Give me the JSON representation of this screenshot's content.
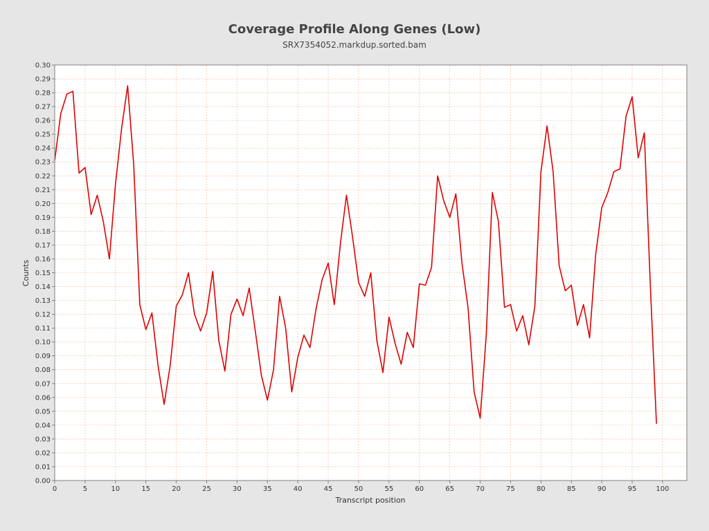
{
  "chart_data": {
    "type": "line",
    "title": "Coverage Profile Along Genes (Low)",
    "subtitle": "SRX7354052.markdup.sorted.bam",
    "xlabel": "Transcript position",
    "ylabel": "Counts",
    "xlim": [
      0,
      104
    ],
    "ylim": [
      0,
      0.3
    ],
    "x_ticks": [
      "0",
      "5",
      "10",
      "15",
      "20",
      "25",
      "30",
      "35",
      "40",
      "45",
      "50",
      "55",
      "60",
      "65",
      "70",
      "75",
      "80",
      "85",
      "90",
      "95",
      "100"
    ],
    "y_ticks": [
      "0.00",
      "0.01",
      "0.02",
      "0.03",
      "0.04",
      "0.05",
      "0.06",
      "0.07",
      "0.08",
      "0.09",
      "0.10",
      "0.11",
      "0.12",
      "0.13",
      "0.14",
      "0.15",
      "0.16",
      "0.17",
      "0.18",
      "0.19",
      "0.20",
      "0.21",
      "0.22",
      "0.23",
      "0.24",
      "0.25",
      "0.26",
      "0.27",
      "0.28",
      "0.29",
      "0.30"
    ],
    "grid": true,
    "colors": {
      "line": "#dd0000",
      "grid": "#f0b48c",
      "plot_bg": "#ffffff",
      "page_bg": "#e6e6e6"
    },
    "series": [
      {
        "x": [
          0,
          1,
          2,
          3,
          4,
          5,
          6,
          7,
          8,
          9,
          10,
          11,
          12,
          13,
          14,
          15,
          16,
          17,
          18,
          19,
          20,
          21,
          22,
          23,
          24,
          25,
          26,
          27,
          28,
          29,
          30,
          31,
          32,
          33,
          34,
          35,
          36,
          37,
          38,
          39,
          40,
          41,
          42,
          43,
          44,
          45,
          46,
          47,
          48,
          49,
          50,
          51,
          52,
          53,
          54,
          55,
          56,
          57,
          58,
          59,
          60,
          61,
          62,
          63,
          64,
          65,
          66,
          67,
          68,
          69,
          70,
          71,
          72,
          73,
          74,
          75,
          76,
          77,
          78,
          79,
          80,
          81,
          82,
          83,
          84,
          85,
          86,
          87,
          88,
          89,
          90,
          91,
          92,
          93,
          94,
          95,
          96,
          97,
          98,
          99
        ],
        "values": [
          0.231,
          0.265,
          0.279,
          0.281,
          0.222,
          0.226,
          0.192,
          0.206,
          0.187,
          0.16,
          0.214,
          0.254,
          0.285,
          0.228,
          0.127,
          0.109,
          0.121,
          0.083,
          0.055,
          0.083,
          0.126,
          0.134,
          0.15,
          0.12,
          0.108,
          0.121,
          0.151,
          0.101,
          0.079,
          0.12,
          0.131,
          0.119,
          0.139,
          0.108,
          0.076,
          0.058,
          0.08,
          0.133,
          0.11,
          0.064,
          0.089,
          0.105,
          0.096,
          0.124,
          0.145,
          0.157,
          0.127,
          0.171,
          0.206,
          0.176,
          0.143,
          0.133,
          0.15,
          0.101,
          0.078,
          0.118,
          0.099,
          0.084,
          0.107,
          0.096,
          0.142,
          0.141,
          0.154,
          0.22,
          0.202,
          0.19,
          0.207,
          0.157,
          0.125,
          0.064,
          0.045,
          0.105,
          0.208,
          0.187,
          0.125,
          0.127,
          0.108,
          0.119,
          0.098,
          0.126,
          0.223,
          0.256,
          0.223,
          0.155,
          0.137,
          0.141,
          0.112,
          0.127,
          0.103,
          0.163,
          0.197,
          0.208,
          0.223,
          0.225,
          0.263,
          0.277,
          0.233,
          0.251,
          0.14,
          0.041
        ]
      }
    ]
  }
}
